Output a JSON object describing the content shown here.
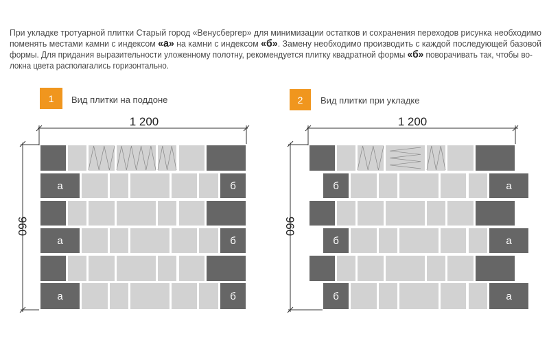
{
  "description": {
    "line1": "При укладке тротуарной плитки Старый город «Венусбергер» для минимизации остатков и сохранения переходов рисунка необходимо",
    "line2_a": "поменять местами камни с индексом ",
    "line2_b": "«а»",
    "line2_c": " на камни с индексом ",
    "line2_d": "«б»",
    "line2_e": ". Замену необходимо производить с каждой последующей базовой",
    "line3_a": "формы. Для придания выразительности уложенному полотну, рекомендуется плитку квадратной формы ",
    "line3_b": "«б»",
    "line3_c": " поворачивать так, чтобы во-",
    "line4": "локна цвета располагались горизонтально."
  },
  "colors": {
    "accent": "#F0961E",
    "dark_tile": "#666666",
    "light_tile": "#d2d2d2",
    "text": "#4a4a4a"
  },
  "diagrams": [
    {
      "number": "1",
      "title": "Вид плитки на поддоне",
      "width_label": "1 200",
      "height_label": "960",
      "left_label": "а",
      "right_label": "б"
    },
    {
      "number": "2",
      "title": "Вид плитки при укладке",
      "width_label": "1 200",
      "height_label": "960",
      "left_label": "б",
      "right_label": "а"
    }
  ]
}
